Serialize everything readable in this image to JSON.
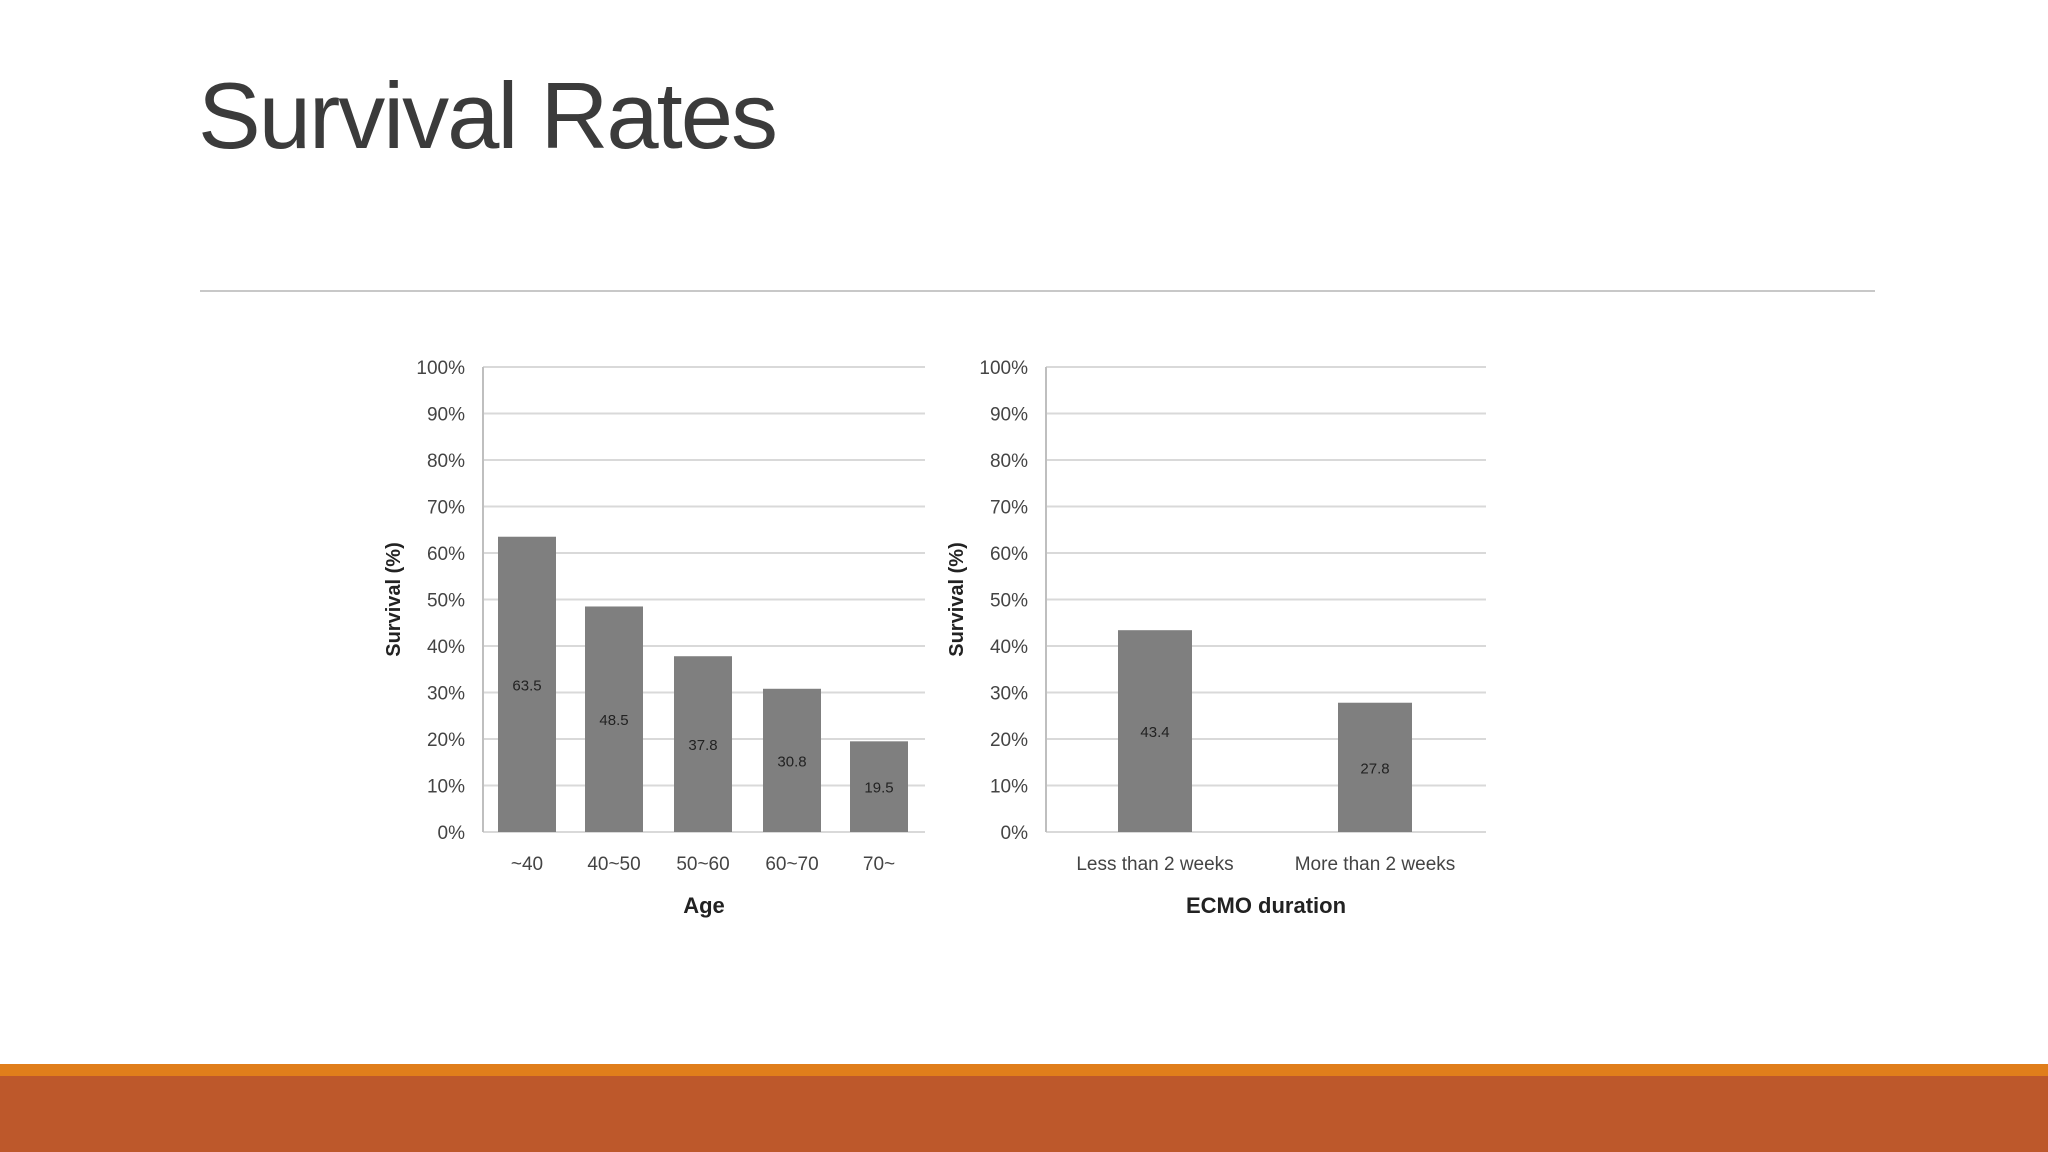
{
  "slide": {
    "title": "Survival Rates",
    "colors": {
      "bar": "#7f7f7f",
      "grid": "#d9d9d9",
      "band_orange": "#e07e1b",
      "band_rust": "#bd582b"
    }
  },
  "chart_data": [
    {
      "type": "bar",
      "categories": [
        "~40",
        "40~50",
        "50~60",
        "60~70",
        "70~"
      ],
      "values": [
        63.5,
        48.5,
        37.8,
        30.8,
        19.5
      ],
      "data_labels": [
        "63.5",
        "48.5",
        "37.8",
        "30.8",
        "19.5"
      ],
      "xlabel": "Age",
      "ylabel": "Survival (%)",
      "ylim": [
        0,
        100
      ],
      "yticks": [
        "0%",
        "10%",
        "20%",
        "30%",
        "40%",
        "50%",
        "60%",
        "70%",
        "80%",
        "90%",
        "100%"
      ],
      "grid": true
    },
    {
      "type": "bar",
      "categories": [
        "Less than 2 weeks",
        "More than 2 weeks"
      ],
      "values": [
        43.4,
        27.8
      ],
      "data_labels": [
        "43.4",
        "27.8"
      ],
      "xlabel": "ECMO duration",
      "ylabel": "Survival (%)",
      "ylim": [
        0,
        100
      ],
      "yticks": [
        "0%",
        "10%",
        "20%",
        "30%",
        "40%",
        "50%",
        "60%",
        "70%",
        "80%",
        "90%",
        "100%"
      ],
      "grid": true
    }
  ]
}
